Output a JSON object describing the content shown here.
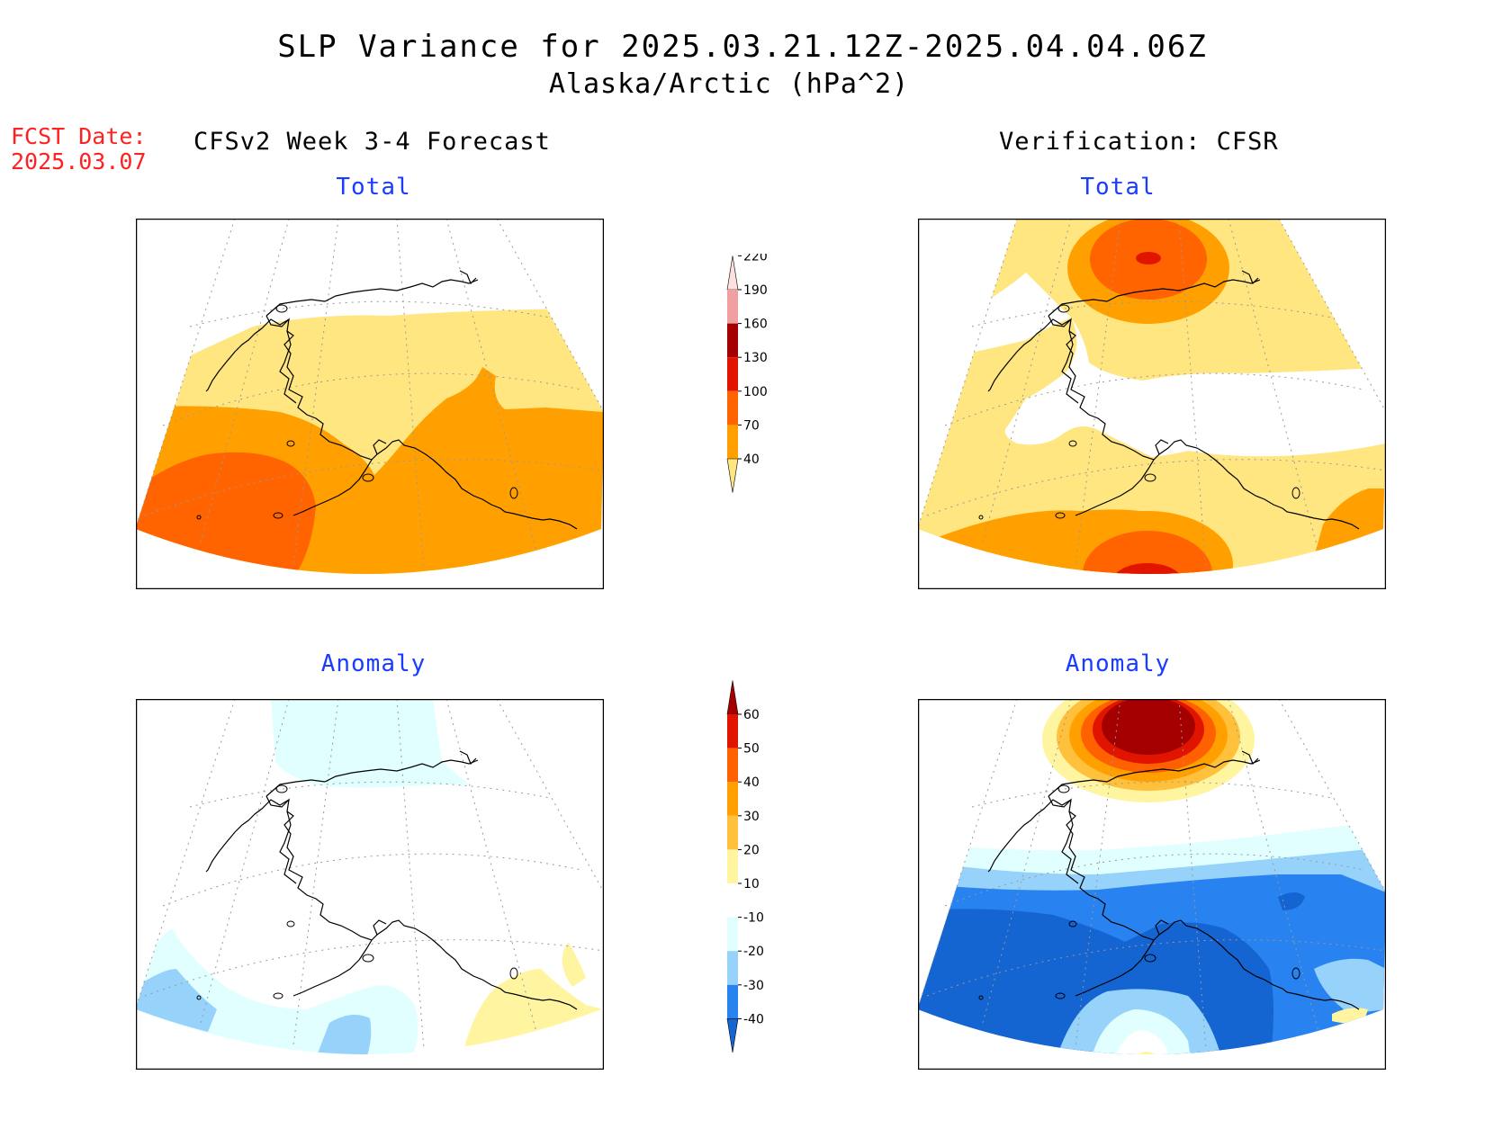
{
  "title": {
    "line1": "SLP Variance for 2025.03.21.12Z-2025.04.04.06Z",
    "line2": "Alaska/Arctic (hPa^2)"
  },
  "forecast_date": {
    "label": "FCST Date:",
    "value": "2025.03.07"
  },
  "columns": {
    "left_header": "CFSv2 Week 3-4 Forecast",
    "right_header": "Verification: CFSR"
  },
  "panels": {
    "forecast_total_title": "Total",
    "forecast_anomaly_title": "Anomaly",
    "verification_total_title": "Total",
    "verification_anomaly_title": "Anomaly"
  },
  "colorbars": {
    "total": {
      "ticks": [
        "40",
        "70",
        "100",
        "130",
        "160",
        "190",
        "220"
      ],
      "colors": [
        "#ffe680",
        "#ffa000",
        "#ff6400",
        "#e11400",
        "#a50000",
        "#f0a0a0",
        "#fde0e0"
      ]
    },
    "anomaly": {
      "ticks": [
        "-40",
        "-30",
        "-20",
        "-10",
        "10",
        "20",
        "30",
        "40",
        "50",
        "60"
      ],
      "colors": [
        "#1464d2",
        "#2882f0",
        "#96d2fa",
        "#e1ffff",
        "#ffffff",
        "#fff5a0",
        "#ffc03c",
        "#ffa000",
        "#ff6000",
        "#e11400",
        "#a50000"
      ]
    }
  },
  "chart_data": {
    "type": "heatmap",
    "variable": "SLP Variance",
    "units": "hPa^2",
    "period": "2025.03.21.12Z-2025.04.04.06Z",
    "region": "Alaska/Arctic",
    "total_levels": [
      40,
      70,
      100,
      130,
      160,
      190,
      220
    ],
    "anomaly_levels": [
      -40,
      -30,
      -20,
      -10,
      10,
      20,
      30,
      40,
      50,
      60
    ]
  }
}
